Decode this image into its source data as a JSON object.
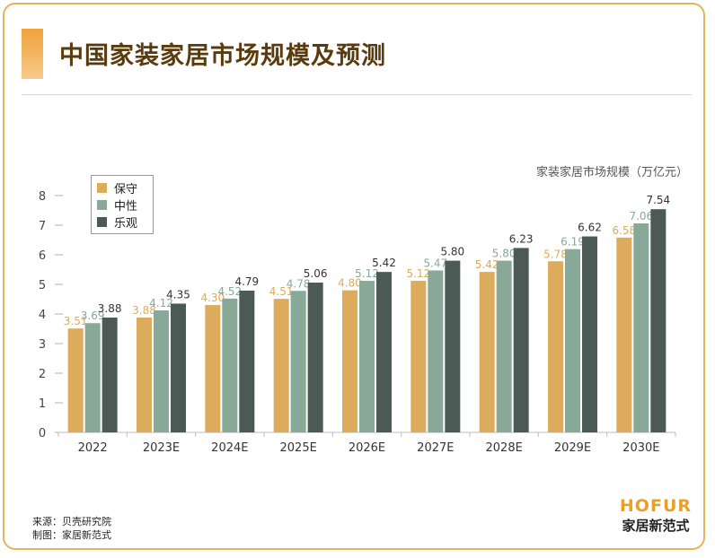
{
  "title": "中国家装家居市场规模及预测",
  "unit_label": "家装家居市场规模（万亿元）",
  "footer": {
    "source": "来源：贝壳研究院",
    "made_by": "制图：家居新范式"
  },
  "brand": {
    "en": "HOFUR",
    "cn": "家居新范式"
  },
  "colors": {
    "accent": "#e8b35a",
    "conservative": "#dcab5c",
    "neutral": "#88a898",
    "optimistic": "#4b5a54"
  },
  "chart_data": {
    "type": "bar",
    "categories": [
      "2022",
      "2023E",
      "2024E",
      "2025E",
      "2026E",
      "2027E",
      "2028E",
      "2029E",
      "2030E"
    ],
    "series": [
      {
        "name": "保守",
        "values": [
          3.51,
          3.88,
          4.3,
          4.51,
          4.8,
          5.12,
          5.42,
          5.78,
          6.58
        ]
      },
      {
        "name": "中性",
        "values": [
          3.69,
          4.12,
          4.52,
          4.78,
          5.12,
          5.47,
          5.8,
          6.19,
          7.06
        ]
      },
      {
        "name": "乐观",
        "values": [
          3.88,
          4.35,
          4.79,
          5.06,
          5.42,
          5.8,
          6.23,
          6.62,
          7.54
        ]
      }
    ],
    "ylabel": "家装家居市场规模（万亿元）",
    "ylim": [
      0,
      8
    ],
    "yticks": [
      0,
      1,
      2,
      3,
      4,
      5,
      6,
      7,
      8
    ],
    "grid": false,
    "legend": "top-left"
  }
}
